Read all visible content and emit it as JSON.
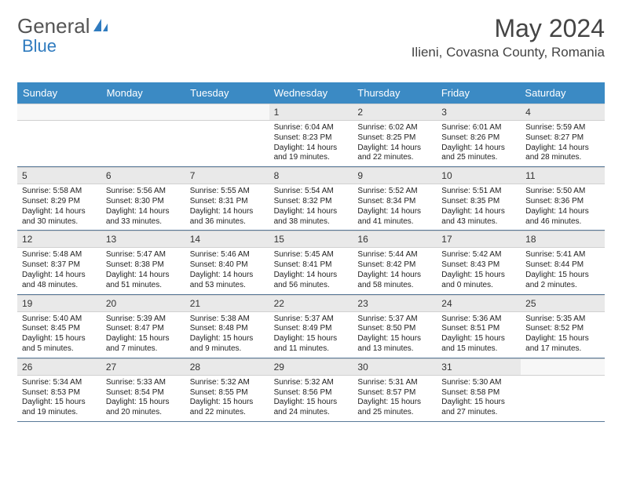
{
  "brand": {
    "text1": "General",
    "text2": "Blue",
    "color_blue": "#2f7bbf",
    "color_gray": "#6a6a6a"
  },
  "title": "May 2024",
  "location": "Ilieni, Covasna County, Romania",
  "dayNames": [
    "Sunday",
    "Monday",
    "Tuesday",
    "Wednesday",
    "Thursday",
    "Friday",
    "Saturday"
  ],
  "header_bg": "#3b8ac4",
  "weeks": [
    [
      {
        "n": "",
        "empty": true
      },
      {
        "n": "",
        "empty": true
      },
      {
        "n": "",
        "empty": true
      },
      {
        "n": "1",
        "sr": "6:04 AM",
        "ss": "8:23 PM",
        "dl": "14 hours and 19 minutes."
      },
      {
        "n": "2",
        "sr": "6:02 AM",
        "ss": "8:25 PM",
        "dl": "14 hours and 22 minutes."
      },
      {
        "n": "3",
        "sr": "6:01 AM",
        "ss": "8:26 PM",
        "dl": "14 hours and 25 minutes."
      },
      {
        "n": "4",
        "sr": "5:59 AM",
        "ss": "8:27 PM",
        "dl": "14 hours and 28 minutes."
      }
    ],
    [
      {
        "n": "5",
        "sr": "5:58 AM",
        "ss": "8:29 PM",
        "dl": "14 hours and 30 minutes."
      },
      {
        "n": "6",
        "sr": "5:56 AM",
        "ss": "8:30 PM",
        "dl": "14 hours and 33 minutes."
      },
      {
        "n": "7",
        "sr": "5:55 AM",
        "ss": "8:31 PM",
        "dl": "14 hours and 36 minutes."
      },
      {
        "n": "8",
        "sr": "5:54 AM",
        "ss": "8:32 PM",
        "dl": "14 hours and 38 minutes."
      },
      {
        "n": "9",
        "sr": "5:52 AM",
        "ss": "8:34 PM",
        "dl": "14 hours and 41 minutes."
      },
      {
        "n": "10",
        "sr": "5:51 AM",
        "ss": "8:35 PM",
        "dl": "14 hours and 43 minutes."
      },
      {
        "n": "11",
        "sr": "5:50 AM",
        "ss": "8:36 PM",
        "dl": "14 hours and 46 minutes."
      }
    ],
    [
      {
        "n": "12",
        "sr": "5:48 AM",
        "ss": "8:37 PM",
        "dl": "14 hours and 48 minutes."
      },
      {
        "n": "13",
        "sr": "5:47 AM",
        "ss": "8:38 PM",
        "dl": "14 hours and 51 minutes."
      },
      {
        "n": "14",
        "sr": "5:46 AM",
        "ss": "8:40 PM",
        "dl": "14 hours and 53 minutes."
      },
      {
        "n": "15",
        "sr": "5:45 AM",
        "ss": "8:41 PM",
        "dl": "14 hours and 56 minutes."
      },
      {
        "n": "16",
        "sr": "5:44 AM",
        "ss": "8:42 PM",
        "dl": "14 hours and 58 minutes."
      },
      {
        "n": "17",
        "sr": "5:42 AM",
        "ss": "8:43 PM",
        "dl": "15 hours and 0 minutes."
      },
      {
        "n": "18",
        "sr": "5:41 AM",
        "ss": "8:44 PM",
        "dl": "15 hours and 2 minutes."
      }
    ],
    [
      {
        "n": "19",
        "sr": "5:40 AM",
        "ss": "8:45 PM",
        "dl": "15 hours and 5 minutes."
      },
      {
        "n": "20",
        "sr": "5:39 AM",
        "ss": "8:47 PM",
        "dl": "15 hours and 7 minutes."
      },
      {
        "n": "21",
        "sr": "5:38 AM",
        "ss": "8:48 PM",
        "dl": "15 hours and 9 minutes."
      },
      {
        "n": "22",
        "sr": "5:37 AM",
        "ss": "8:49 PM",
        "dl": "15 hours and 11 minutes."
      },
      {
        "n": "23",
        "sr": "5:37 AM",
        "ss": "8:50 PM",
        "dl": "15 hours and 13 minutes."
      },
      {
        "n": "24",
        "sr": "5:36 AM",
        "ss": "8:51 PM",
        "dl": "15 hours and 15 minutes."
      },
      {
        "n": "25",
        "sr": "5:35 AM",
        "ss": "8:52 PM",
        "dl": "15 hours and 17 minutes."
      }
    ],
    [
      {
        "n": "26",
        "sr": "5:34 AM",
        "ss": "8:53 PM",
        "dl": "15 hours and 19 minutes."
      },
      {
        "n": "27",
        "sr": "5:33 AM",
        "ss": "8:54 PM",
        "dl": "15 hours and 20 minutes."
      },
      {
        "n": "28",
        "sr": "5:32 AM",
        "ss": "8:55 PM",
        "dl": "15 hours and 22 minutes."
      },
      {
        "n": "29",
        "sr": "5:32 AM",
        "ss": "8:56 PM",
        "dl": "15 hours and 24 minutes."
      },
      {
        "n": "30",
        "sr": "5:31 AM",
        "ss": "8:57 PM",
        "dl": "15 hours and 25 minutes."
      },
      {
        "n": "31",
        "sr": "5:30 AM",
        "ss": "8:58 PM",
        "dl": "15 hours and 27 minutes."
      },
      {
        "n": "",
        "empty": true
      }
    ]
  ],
  "labels": {
    "sunrise": "Sunrise:",
    "sunset": "Sunset:",
    "daylight": "Daylight:"
  }
}
